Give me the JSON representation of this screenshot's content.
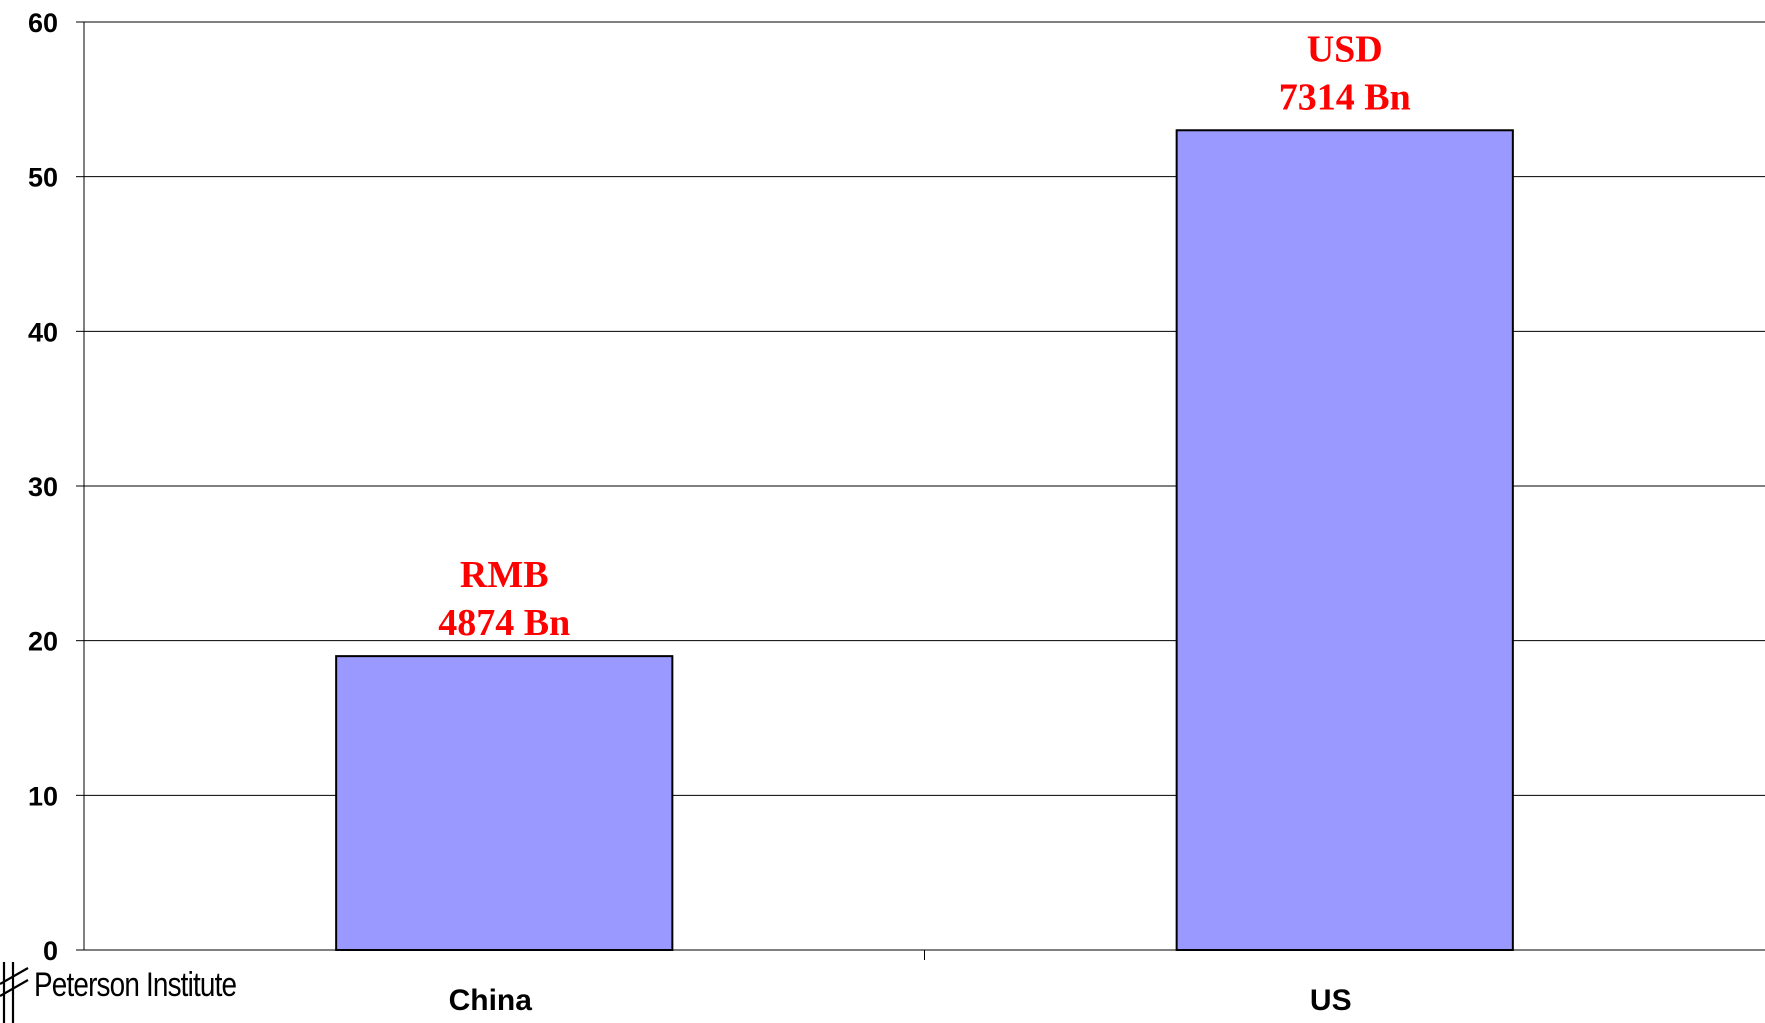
{
  "chart_data": {
    "type": "bar",
    "categories": [
      "China",
      "US"
    ],
    "values": [
      19,
      53
    ],
    "ylim": [
      0,
      60
    ],
    "yticks": [
      0,
      10,
      20,
      30,
      40,
      50,
      60
    ],
    "grid": true,
    "bar_color": "#9999ff",
    "data_labels": [
      {
        "line1": "RMB",
        "line2": "4874 Bn"
      },
      {
        "line1": "USD",
        "line2": "7314 Bn"
      }
    ],
    "data_label_color": "#ff0000"
  },
  "logo": {
    "text": "Peterson Institute"
  }
}
